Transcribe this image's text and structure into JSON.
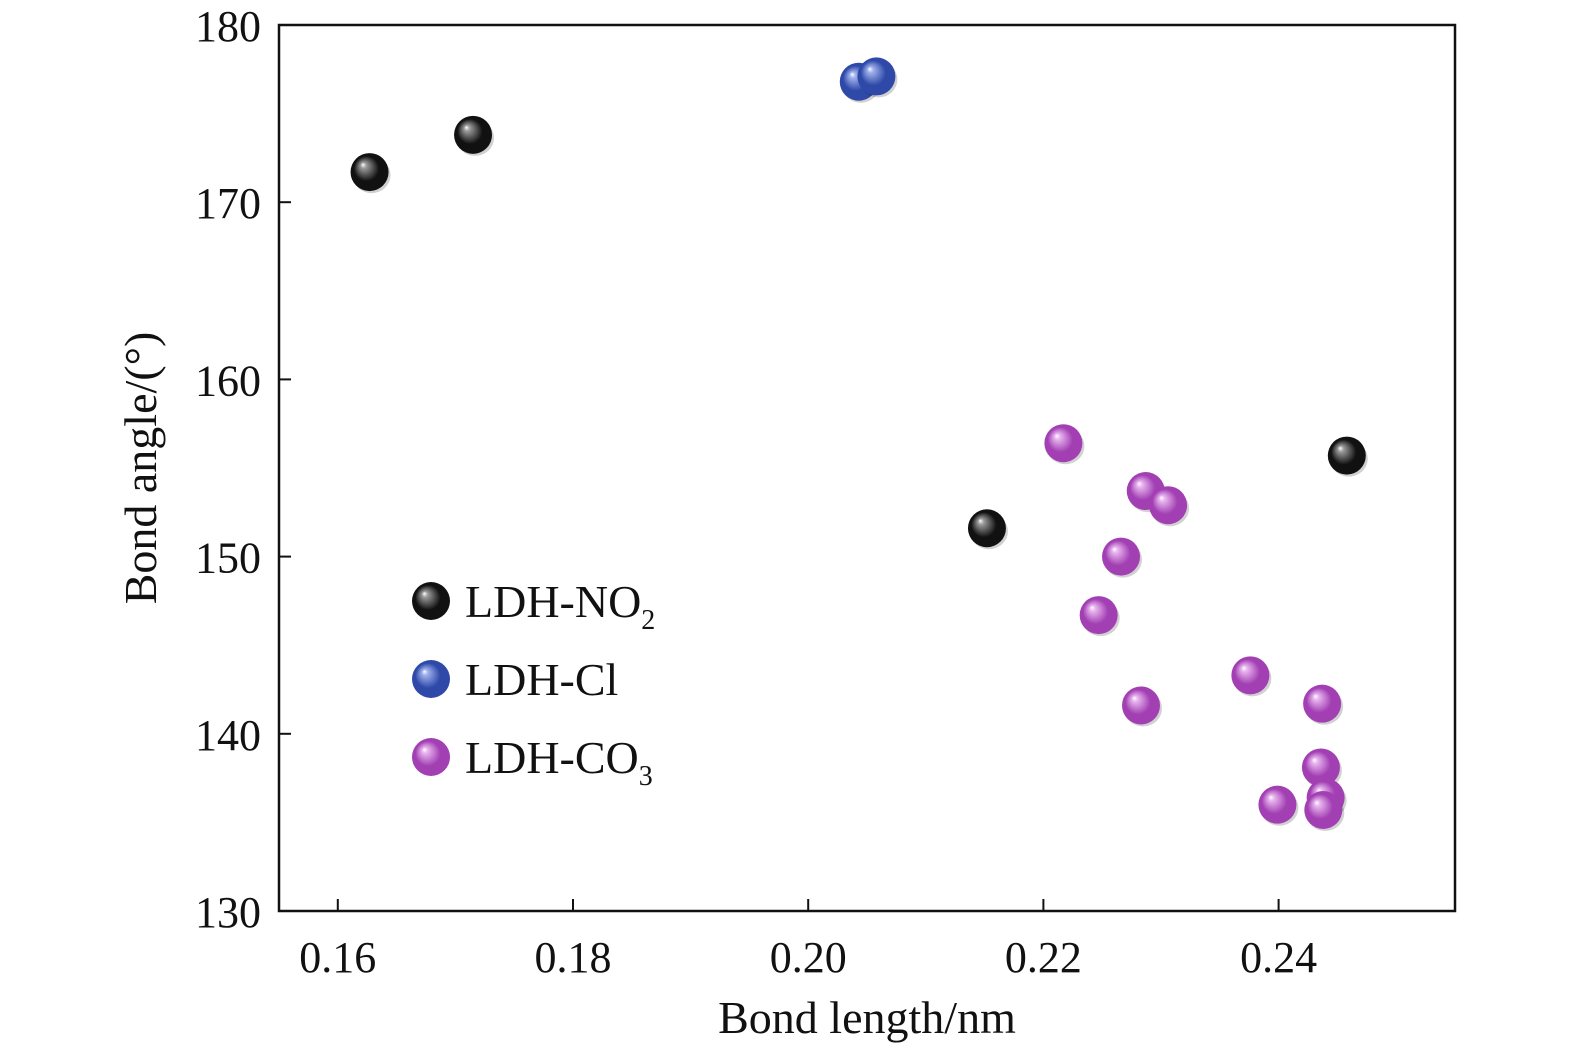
{
  "chart_data": {
    "type": "scatter",
    "title": "",
    "xlabel": "Bond length/nm",
    "ylabel": "Bond angle/(°)",
    "xlim": [
      0.155,
      0.255
    ],
    "ylim": [
      130,
      180
    ],
    "xticks": [
      0.16,
      0.18,
      0.2,
      0.22,
      0.24
    ],
    "xtick_labels": [
      "0.16",
      "0.18",
      "0.20",
      "0.22",
      "0.24"
    ],
    "yticks": [
      130,
      140,
      150,
      160,
      170,
      180
    ],
    "ytick_labels": [
      "130",
      "140",
      "150",
      "160",
      "170",
      "180"
    ],
    "grid": false,
    "legend_position": "center-left",
    "series": [
      {
        "name": "LDH-NO2",
        "legend_base": "LDH-NO",
        "legend_sub": "2",
        "color": "#111111",
        "highlight": "#9a9a9a",
        "points": [
          {
            "x": 0.1627,
            "y": 171.7
          },
          {
            "x": 0.1715,
            "y": 173.8
          },
          {
            "x": 0.2152,
            "y": 151.6
          },
          {
            "x": 0.2458,
            "y": 155.7
          }
        ]
      },
      {
        "name": "LDH-Cl",
        "legend_base": "LDH-Cl",
        "legend_sub": "",
        "color": "#2e49a8",
        "highlight": "#9fb0ec",
        "points": [
          {
            "x": 0.2043,
            "y": 176.8
          },
          {
            "x": 0.2058,
            "y": 177.1
          }
        ]
      },
      {
        "name": "LDH-CO3",
        "legend_base": "LDH-CO",
        "legend_sub": "3",
        "color": "#a23fb3",
        "highlight": "#e7b4ee",
        "points": [
          {
            "x": 0.2217,
            "y": 156.4
          },
          {
            "x": 0.2247,
            "y": 146.7
          },
          {
            "x": 0.2266,
            "y": 150.0
          },
          {
            "x": 0.2287,
            "y": 153.7
          },
          {
            "x": 0.2306,
            "y": 152.9
          },
          {
            "x": 0.2283,
            "y": 141.6
          },
          {
            "x": 0.2376,
            "y": 143.3
          },
          {
            "x": 0.2437,
            "y": 141.7
          },
          {
            "x": 0.2436,
            "y": 138.1
          },
          {
            "x": 0.2399,
            "y": 136.0
          },
          {
            "x": 0.244,
            "y": 136.4
          },
          {
            "x": 0.2438,
            "y": 135.7
          }
        ]
      }
    ]
  }
}
